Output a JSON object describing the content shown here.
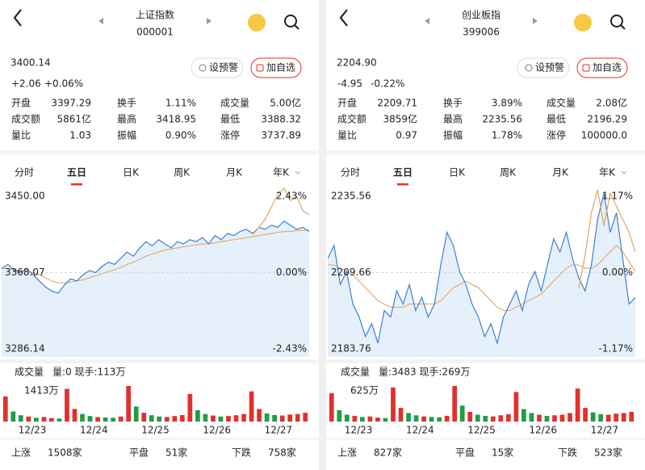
{
  "panels": [
    {
      "title": "上证指数",
      "code": "000001",
      "price": "3400.14",
      "change": "+2.06",
      "change_pct": "+0.06%",
      "color": "#e0312e",
      "buttons": [
        "设预警",
        "加自选"
      ],
      "stats": [
        [
          {
            "label": "开盘",
            "value": "3397.29",
            "color": "#1f9d48"
          },
          {
            "label": "换手",
            "value": "1.11%"
          },
          {
            "label": "成交量",
            "value": "5.00亿"
          }
        ],
        [
          {
            "label": "成交额",
            "value": "5861亿"
          },
          {
            "label": "最高",
            "value": "3418.95",
            "color": "#e0312e"
          },
          {
            "label": "最低",
            "value": "3388.32",
            "color": "#1f9d48"
          }
        ],
        [
          {
            "label": "量比",
            "value": "1.03"
          },
          {
            "label": "振幅",
            "value": "0.90%"
          },
          {
            "label": "涨停",
            "value": "3737.89",
            "color": "#e0312e"
          }
        ]
      ],
      "tabs": [
        "分时",
        "五日",
        "日K",
        "周K",
        "月K",
        "年K"
      ],
      "selected_tab": 1,
      "chart": {
        "type": "line",
        "ylim": [
          3286.14,
          3450
        ],
        "yticks": [
          {
            "value": 3450,
            "label": "3450.00"
          },
          3368.07,
          3286.14
        ],
        "y2lim": [
          -2.43,
          2.43
        ],
        "y2ticks": [
          {
            "value": 2.43,
            "label": "2.43%"
          },
          {
            "value": 0,
            "label": "0.00%"
          },
          {
            "value": -2.43,
            "label": "-2.43%"
          }
        ],
        "price_line": [
          3372,
          3376,
          3370,
          3368,
          3372,
          3366,
          3360,
          3354,
          3350,
          3348,
          3356,
          3362,
          3360,
          3366,
          3370,
          3368,
          3374,
          3378,
          3376,
          3382,
          3388,
          3384,
          3392,
          3398,
          3394,
          3400,
          3396,
          3392,
          3398,
          3396,
          3400,
          3398,
          3402,
          3396,
          3404,
          3400,
          3406,
          3404,
          3408,
          3410,
          3406,
          3412,
          3410,
          3414,
          3412,
          3418,
          3414,
          3410,
          3412,
          3408
        ],
        "avg_line": [
          3372,
          3372,
          3371,
          3370,
          3369,
          3368,
          3366,
          3363,
          3360,
          3358,
          3358,
          3359,
          3360,
          3361,
          3363,
          3365,
          3367,
          3369,
          3371,
          3373,
          3376,
          3378,
          3381,
          3384,
          3386,
          3388,
          3390,
          3391,
          3392,
          3393,
          3394,
          3395,
          3396,
          3396,
          3397,
          3398,
          3399,
          3400,
          3401,
          3402,
          3403,
          3404,
          3405,
          3406,
          3407,
          3408,
          3408,
          3409,
          3409,
          3409
        ],
        "overlay_line": [
          null,
          null,
          null,
          null,
          null,
          null,
          null,
          null,
          null,
          null,
          null,
          null,
          null,
          null,
          null,
          null,
          null,
          null,
          null,
          null,
          null,
          null,
          null,
          null,
          null,
          null,
          null,
          null,
          null,
          null,
          null,
          null,
          null,
          null,
          null,
          null,
          null,
          null,
          null,
          null,
          3405,
          3412,
          3420,
          3432,
          3444,
          3450,
          3438,
          3442,
          3428,
          3424
        ]
      },
      "volume": {
        "title": "成交量",
        "info": "量:0 现手:113万",
        "ylim": [
          0,
          1413
        ],
        "yticks": [
          {
            "value": 1413,
            "label": "1413万"
          }
        ],
        "values": [
          1000,
          400,
          250,
          200,
          150,
          180,
          140,
          120,
          1300,
          500,
          300,
          220,
          180,
          160,
          150,
          200,
          1413,
          600,
          350,
          250,
          200,
          180,
          220,
          260,
          1100,
          450,
          300,
          240,
          200,
          220,
          250,
          300,
          1200,
          500,
          320,
          260,
          240,
          280,
          300,
          350
        ],
        "categories": [
          "12/23",
          "12/24",
          "12/25",
          "12/26",
          "12/27"
        ]
      },
      "footer": [
        {
          "label": "上涨",
          "value": "1508家",
          "color": "#e0312e"
        },
        {
          "label": "平盘",
          "value": "51家",
          "color": "#aaaaaa"
        },
        {
          "label": "下跌",
          "value": "758家",
          "color": "#1f9d48"
        }
      ]
    },
    {
      "title": "创业板指",
      "code": "399006",
      "price": "2204.90",
      "change": "-4.95",
      "change_pct": "-0.22%",
      "color": "#1f9d48",
      "buttons": [
        "设预警",
        "加自选"
      ],
      "stats": [
        [
          {
            "label": "开盘",
            "value": "2209.71",
            "color": "#1f9d48"
          },
          {
            "label": "换手",
            "value": "3.89%"
          },
          {
            "label": "成交量",
            "value": "2.08亿"
          }
        ],
        [
          {
            "label": "成交额",
            "value": "3859亿"
          },
          {
            "label": "最高",
            "value": "2235.56",
            "color": "#e0312e"
          },
          {
            "label": "最低",
            "value": "2196.29",
            "color": "#1f9d48"
          }
        ],
        [
          {
            "label": "量比",
            "value": "0.97"
          },
          {
            "label": "振幅",
            "value": "1.78%"
          },
          {
            "label": "涨停",
            "value": "100000.0",
            "color": "#e0312e"
          }
        ]
      ],
      "tabs": [
        "分时",
        "五日",
        "日K",
        "周K",
        "月K",
        "年K"
      ],
      "selected_tab": 1,
      "chart": {
        "type": "line",
        "ylim": [
          2183.76,
          2235.56
        ],
        "yticks": [
          2235.56,
          2209.66,
          2183.76
        ],
        "y2lim": [
          -1.17,
          1.17
        ],
        "y2ticks": [
          {
            "value": 1.17,
            "label": "1.17%"
          },
          {
            "value": 0,
            "label": "0.00%"
          },
          {
            "value": -1.17,
            "label": "-1.17%"
          }
        ],
        "price_line": [
          2214,
          2218,
          2206,
          2210,
          2200,
          2196,
          2190,
          2194,
          2188,
          2198,
          2196,
          2204,
          2200,
          2206,
          2198,
          2202,
          2196,
          2200,
          2212,
          2222,
          2218,
          2210,
          2206,
          2200,
          2196,
          2190,
          2194,
          2188,
          2196,
          2200,
          2204,
          2198,
          2206,
          2210,
          2204,
          2212,
          2220,
          2216,
          2222,
          2214,
          2208,
          2204,
          2212,
          2226,
          2234,
          2222,
          2228,
          2214,
          2200,
          2202
        ],
        "avg_line": [
          2212,
          2212,
          2211,
          2210,
          2209,
          2207,
          2205,
          2203,
          2201,
          2200,
          2199,
          2199,
          2199,
          2200,
          2200,
          2200,
          2200,
          2200,
          2201,
          2203,
          2205,
          2206,
          2207,
          2206,
          2205,
          2203,
          2201,
          2199,
          2198,
          2198,
          2199,
          2200,
          2201,
          2202,
          2203,
          2205,
          2207,
          2209,
          2211,
          2212,
          2212,
          2211,
          2211,
          2212,
          2214,
          2216,
          2218,
          2216,
          2213,
          2210
        ],
        "overlay_line": [
          null,
          null,
          null,
          null,
          null,
          null,
          null,
          null,
          null,
          null,
          null,
          null,
          null,
          null,
          null,
          null,
          null,
          null,
          null,
          null,
          null,
          null,
          null,
          null,
          null,
          null,
          null,
          null,
          null,
          null,
          null,
          null,
          null,
          null,
          null,
          null,
          null,
          null,
          null,
          null,
          2205,
          2215,
          2228,
          2235,
          2224,
          2234,
          2230,
          2226,
          2222,
          2216
        ]
      },
      "volume": {
        "title": "成交量",
        "info": "量:3483 现手:269万",
        "ylim": [
          0,
          625
        ],
        "yticks": [
          {
            "value": 625,
            "label": "625万"
          }
        ],
        "values": [
          500,
          200,
          120,
          100,
          80,
          90,
          70,
          60,
          600,
          240,
          150,
          110,
          90,
          80,
          75,
          100,
          625,
          280,
          170,
          120,
          100,
          90,
          110,
          130,
          520,
          220,
          150,
          120,
          100,
          110,
          120,
          150,
          580,
          240,
          160,
          130,
          120,
          140,
          150,
          170
        ],
        "categories": [
          "12/23",
          "12/24",
          "12/25",
          "12/26",
          "12/27"
        ]
      },
      "footer": [
        {
          "label": "上涨",
          "value": "827家",
          "color": "#e0312e"
        },
        {
          "label": "平盘",
          "value": "15家",
          "color": "#aaaaaa"
        },
        {
          "label": "下跌",
          "value": "523家",
          "color": "#1f9d48"
        }
      ]
    }
  ]
}
